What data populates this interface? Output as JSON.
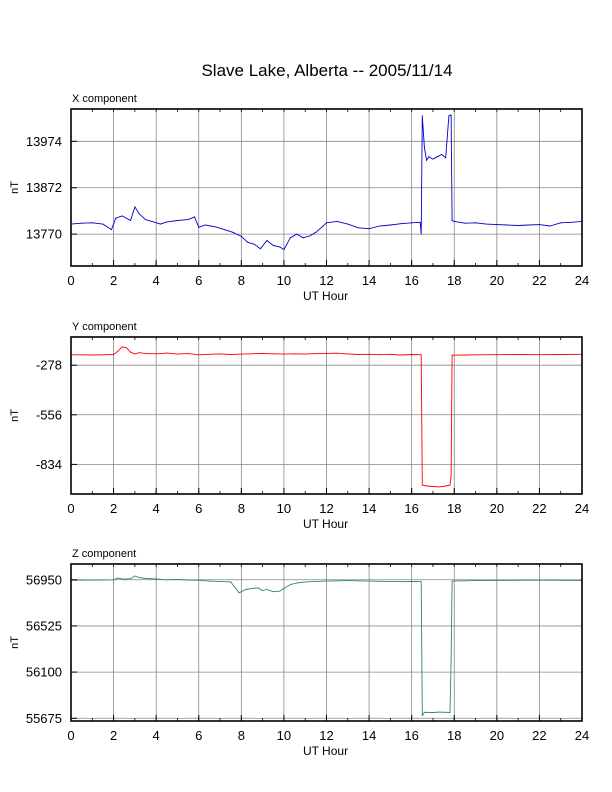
{
  "title": "Slave Lake, Alberta -- 2005/11/14",
  "chart_data": [
    {
      "type": "line",
      "panel_label": "X component",
      "xlabel": "UT Hour",
      "ylabel": "nT",
      "xlim": [
        0,
        24
      ],
      "xticks": [
        0,
        2,
        4,
        6,
        8,
        10,
        12,
        14,
        16,
        18,
        20,
        22,
        24
      ],
      "ylim": [
        13700,
        14045
      ],
      "yticks": [
        13770,
        13872,
        13974
      ],
      "grid": true,
      "color": "#0000cc",
      "series": [
        {
          "x": [
            0,
            0.5,
            1,
            1.5,
            1.9,
            2.1,
            2.4,
            2.8,
            3.0,
            3.2,
            3.5,
            3.8,
            4.2,
            4.5,
            5.0,
            5.5,
            5.8,
            6.0,
            6.3,
            6.8,
            7.2,
            7.6,
            8.0,
            8.3,
            8.6,
            8.9,
            9.2,
            9.5,
            9.8,
            10.0,
            10.3,
            10.6,
            10.9,
            11.2,
            11.5,
            11.8,
            12.0,
            12.5,
            13.0,
            13.5,
            14.0,
            14.5,
            15.0,
            15.5,
            16.0,
            16.4,
            16.45,
            16.5,
            16.6,
            16.7,
            16.8,
            17.0,
            17.2,
            17.4,
            17.6,
            17.75,
            17.85,
            17.9,
            18.0,
            18.5,
            19.0,
            19.5,
            20.0,
            20.5,
            21.0,
            21.5,
            22.0,
            22.5,
            23.0,
            23.5,
            24.0
          ],
          "values": [
            13792,
            13794,
            13795,
            13792,
            13780,
            13805,
            13810,
            13800,
            13830,
            13815,
            13802,
            13798,
            13792,
            13797,
            13800,
            13802,
            13808,
            13785,
            13790,
            13786,
            13780,
            13774,
            13765,
            13752,
            13748,
            13738,
            13756,
            13745,
            13742,
            13736,
            13762,
            13770,
            13762,
            13766,
            13774,
            13786,
            13795,
            13798,
            13792,
            13784,
            13782,
            13788,
            13790,
            13793,
            13795,
            13796,
            13770,
            14030,
            13960,
            13932,
            13940,
            13935,
            13940,
            13945,
            13938,
            14030,
            14032,
            13800,
            13798,
            13794,
            13795,
            13792,
            13791,
            13790,
            13789,
            13790,
            13791,
            13788,
            13795,
            13796,
            13798
          ]
        }
      ]
    },
    {
      "type": "line",
      "panel_label": "Y component",
      "xlabel": "UT Hour",
      "ylabel": "nT",
      "xlim": [
        0,
        24
      ],
      "xticks": [
        0,
        2,
        4,
        6,
        8,
        10,
        12,
        14,
        16,
        18,
        20,
        22,
        24
      ],
      "ylim": [
        -1000,
        -120
      ],
      "yticks": [
        -278,
        -556,
        -834
      ],
      "grid": true,
      "color": "#ff0000",
      "series": [
        {
          "x": [
            0,
            0.5,
            1,
            1.5,
            2.0,
            2.2,
            2.4,
            2.6,
            2.8,
            3.0,
            3.2,
            3.5,
            4.0,
            4.5,
            5.0,
            5.5,
            6.0,
            6.5,
            7.0,
            7.5,
            8.0,
            8.5,
            9.0,
            9.5,
            10.0,
            10.5,
            11.0,
            11.5,
            12.0,
            12.5,
            13.0,
            13.5,
            14.0,
            14.5,
            15.0,
            15.5,
            16.0,
            16.4,
            16.45,
            16.5,
            16.7,
            17.0,
            17.3,
            17.6,
            17.8,
            17.85,
            17.9,
            18.5,
            19.0,
            20.0,
            21.0,
            22.0,
            23.0,
            24.0
          ],
          "values": [
            -220,
            -220,
            -221,
            -220,
            -218,
            -200,
            -175,
            -180,
            -205,
            -215,
            -208,
            -212,
            -214,
            -210,
            -216,
            -213,
            -220,
            -217,
            -215,
            -218,
            -216,
            -214,
            -212,
            -214,
            -216,
            -214,
            -216,
            -213,
            -212,
            -211,
            -215,
            -218,
            -217,
            -219,
            -217,
            -221,
            -218,
            -219,
            -220,
            -950,
            -955,
            -958,
            -960,
            -955,
            -950,
            -900,
            -222,
            -221,
            -220,
            -219,
            -218,
            -219,
            -218,
            -217
          ]
        }
      ]
    },
    {
      "type": "line",
      "panel_label": "Z component",
      "xlabel": "UT Hour",
      "ylabel": "nT",
      "xlim": [
        0,
        24
      ],
      "xticks": [
        0,
        2,
        4,
        6,
        8,
        10,
        12,
        14,
        16,
        18,
        20,
        22,
        24
      ],
      "ylim": [
        55650,
        57095
      ],
      "yticks": [
        55675,
        56100,
        56525,
        56950
      ],
      "grid": true,
      "color": "#2e8b57",
      "series": [
        {
          "x": [
            0,
            0.5,
            1,
            1.5,
            2.0,
            2.2,
            2.5,
            2.8,
            3.0,
            3.2,
            3.5,
            4.0,
            4.5,
            5.0,
            5.5,
            6.0,
            6.5,
            7.0,
            7.5,
            7.7,
            7.9,
            8.2,
            8.5,
            8.8,
            9.0,
            9.2,
            9.5,
            9.8,
            10.0,
            10.3,
            10.6,
            11.0,
            11.5,
            12.0,
            12.5,
            13.0,
            13.5,
            14.0,
            14.5,
            15.0,
            15.5,
            16.0,
            16.4,
            16.45,
            16.5,
            16.6,
            17.0,
            17.3,
            17.6,
            17.8,
            17.85,
            17.9,
            18.5,
            19.0,
            20.0,
            21.0,
            22.0,
            23.0,
            24.0
          ],
          "values": [
            56945,
            56946,
            56947,
            56948,
            56950,
            56965,
            56955,
            56960,
            56985,
            56970,
            56962,
            56958,
            56950,
            56952,
            56948,
            56945,
            56938,
            56935,
            56930,
            56880,
            56830,
            56860,
            56870,
            56875,
            56850,
            56860,
            56840,
            56845,
            56870,
            56905,
            56920,
            56930,
            56935,
            56938,
            56940,
            56942,
            56940,
            56938,
            56936,
            56935,
            56932,
            56934,
            56935,
            56930,
            55700,
            55730,
            55728,
            55732,
            55730,
            55728,
            56200,
            56938,
            56940,
            56942,
            56944,
            56945,
            56946,
            56945,
            56944
          ]
        }
      ]
    }
  ]
}
